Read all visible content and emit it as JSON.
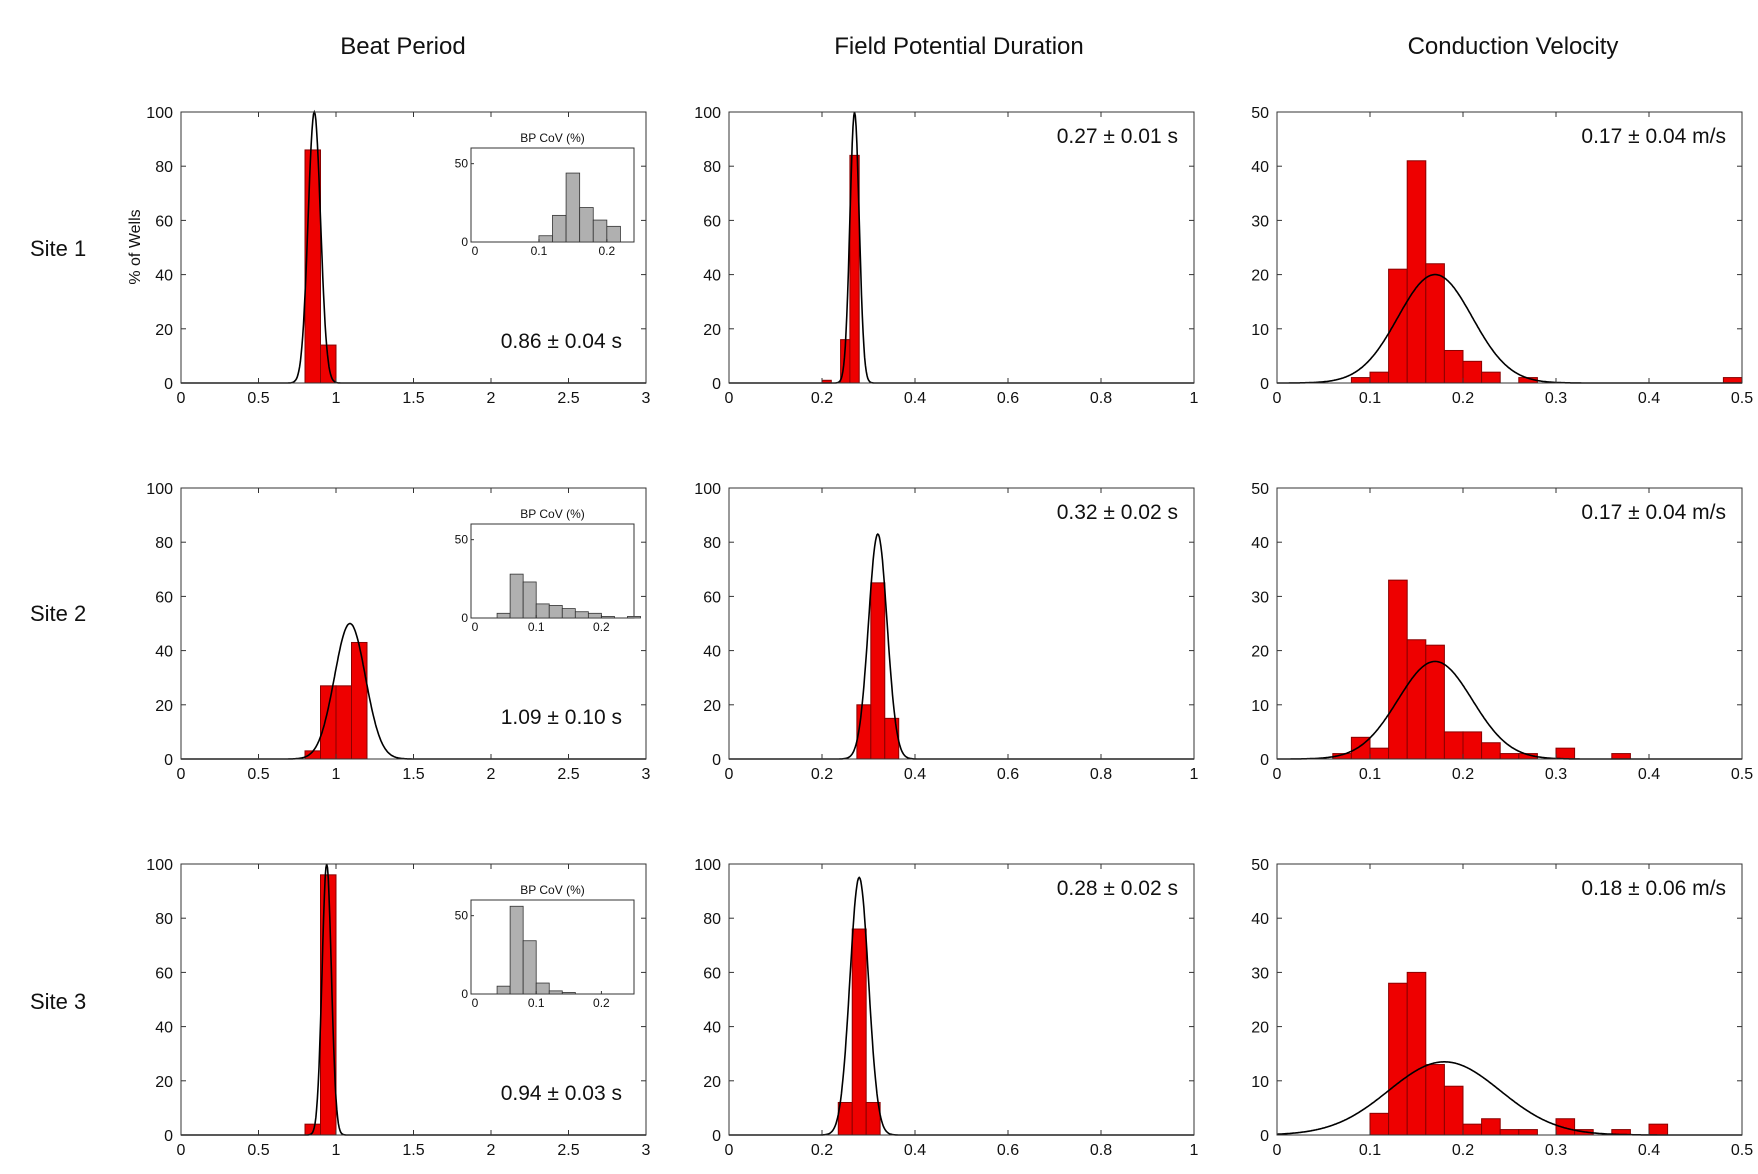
{
  "figure": {
    "column_titles": [
      "Beat Period",
      "Field Potential Duration",
      "Conduction Velocity"
    ],
    "row_labels": [
      "Site 1",
      "Site 2",
      "Site 3"
    ],
    "ylabel": "% of Wells"
  },
  "chart_data": [
    {
      "type": "bar",
      "title": "Beat Period",
      "row": "Site 1",
      "xlim": [
        0,
        3
      ],
      "xticks": [
        0,
        0.5,
        1,
        1.5,
        2,
        2.5,
        3
      ],
      "xtick_labels": [
        "0",
        "0.5",
        "1",
        "1.5",
        "2",
        "2.5",
        "3"
      ],
      "ylim": [
        0,
        100
      ],
      "yticks": [
        0,
        20,
        40,
        60,
        80,
        100
      ],
      "ylabel": "% of Wells",
      "bin_width": 0.1,
      "x": [
        0.85,
        0.95
      ],
      "values": [
        86,
        14
      ],
      "fit": {
        "mean": 0.86,
        "sd": 0.04,
        "peak": 100
      },
      "annotation": "0.86 ± 0.04 s",
      "inset": {
        "title": "BP CoV (%)",
        "xlim": [
          0,
          0.24
        ],
        "ylim": [
          0,
          60
        ],
        "xticks": [
          0.1,
          0.2
        ],
        "xtick_labels": [
          "0.1",
          "0.2"
        ],
        "yticks": [
          0,
          50
        ],
        "ytick_labels": [
          "0",
          "50"
        ],
        "origin_x_label": "0",
        "bin_width": 0.02,
        "x": [
          0.05,
          0.07,
          0.09,
          0.11,
          0.13,
          0.15,
          0.17,
          0.19,
          0.21
        ],
        "values": [
          0,
          0,
          0,
          4,
          17,
          44,
          22,
          14,
          10
        ]
      }
    },
    {
      "type": "bar",
      "title": "Field Potential Duration",
      "row": "Site 1",
      "xlim": [
        0,
        1
      ],
      "xticks": [
        0,
        0.2,
        0.4,
        0.6,
        0.8,
        1
      ],
      "xtick_labels": [
        "0",
        "0.2",
        "0.4",
        "0.6",
        "0.8",
        "1"
      ],
      "ylim": [
        0,
        100
      ],
      "yticks": [
        0,
        20,
        40,
        60,
        80,
        100
      ],
      "bin_width": 0.02,
      "x": [
        0.21,
        0.23,
        0.25,
        0.27,
        0.29
      ],
      "values": [
        1,
        0,
        16,
        84,
        0
      ],
      "fit": {
        "mean": 0.27,
        "sd": 0.01,
        "peak": 100
      },
      "annotation": "0.27 ± 0.01 s"
    },
    {
      "type": "bar",
      "title": "Conduction Velocity",
      "row": "Site 1",
      "xlim": [
        0,
        0.5
      ],
      "xticks": [
        0,
        0.1,
        0.2,
        0.3,
        0.4,
        0.5
      ],
      "xtick_labels": [
        "0",
        "0.1",
        "0.2",
        "0.3",
        "0.4",
        "0.5"
      ],
      "ylim": [
        0,
        50
      ],
      "yticks": [
        0,
        10,
        20,
        30,
        40,
        50
      ],
      "bin_width": 0.02,
      "x": [
        0.09,
        0.11,
        0.13,
        0.15,
        0.17,
        0.19,
        0.21,
        0.23,
        0.25,
        0.27,
        0.29,
        0.31,
        0.33,
        0.35,
        0.37,
        0.39,
        0.41,
        0.43,
        0.45,
        0.47,
        0.49
      ],
      "values": [
        1,
        2,
        21,
        41,
        22,
        6,
        4,
        2,
        0,
        1,
        0,
        0,
        0,
        0,
        0,
        0,
        0,
        0,
        0,
        0,
        1
      ],
      "fit": {
        "mean": 0.17,
        "sd": 0.04,
        "peak": 20
      },
      "annotation": "0.17 ± 0.04 m/s"
    },
    {
      "type": "bar",
      "title": "Beat Period",
      "row": "Site 2",
      "xlim": [
        0,
        3
      ],
      "xticks": [
        0,
        0.5,
        1,
        1.5,
        2,
        2.5,
        3
      ],
      "xtick_labels": [
        "0",
        "0.5",
        "1",
        "1.5",
        "2",
        "2.5",
        "3"
      ],
      "ylim": [
        0,
        100
      ],
      "yticks": [
        0,
        20,
        40,
        60,
        80,
        100
      ],
      "bin_width": 0.1,
      "x": [
        0.85,
        0.95,
        1.05,
        1.15
      ],
      "values": [
        3,
        27,
        27,
        43
      ],
      "fit": {
        "mean": 1.09,
        "sd": 0.1,
        "peak": 50
      },
      "annotation": "1.09 ± 0.10 s",
      "inset": {
        "title": "BP CoV (%)",
        "xlim": [
          0,
          0.25
        ],
        "ylim": [
          0,
          60
        ],
        "xticks": [
          0.1,
          0.2
        ],
        "xtick_labels": [
          "0.1",
          "0.2"
        ],
        "yticks": [
          0,
          50
        ],
        "ytick_labels": [
          "0",
          "50"
        ],
        "origin_x_label": "0",
        "bin_width": 0.02,
        "x": [
          0.03,
          0.05,
          0.07,
          0.09,
          0.11,
          0.13,
          0.15,
          0.17,
          0.19,
          0.21,
          0.23,
          0.25
        ],
        "values": [
          0,
          3,
          28,
          23,
          9,
          8,
          6,
          4,
          3,
          1,
          0,
          1
        ]
      }
    },
    {
      "type": "bar",
      "title": "Field Potential Duration",
      "row": "Site 2",
      "xlim": [
        0,
        1
      ],
      "xticks": [
        0,
        0.2,
        0.4,
        0.6,
        0.8,
        1
      ],
      "xtick_labels": [
        "0",
        "0.2",
        "0.4",
        "0.6",
        "0.8",
        "1"
      ],
      "ylim": [
        0,
        100
      ],
      "yticks": [
        0,
        20,
        40,
        60,
        80,
        100
      ],
      "bin_width": 0.03,
      "x": [
        0.29,
        0.32,
        0.35
      ],
      "values": [
        20,
        65,
        15
      ],
      "fit": {
        "mean": 0.32,
        "sd": 0.02,
        "peak": 83
      },
      "annotation": "0.32 ± 0.02 s"
    },
    {
      "type": "bar",
      "title": "Conduction Velocity",
      "row": "Site 2",
      "xlim": [
        0,
        0.5
      ],
      "xticks": [
        0,
        0.1,
        0.2,
        0.3,
        0.4,
        0.5
      ],
      "xtick_labels": [
        "0",
        "0.1",
        "0.2",
        "0.3",
        "0.4",
        "0.5"
      ],
      "ylim": [
        0,
        50
      ],
      "yticks": [
        0,
        10,
        20,
        30,
        40,
        50
      ],
      "bin_width": 0.02,
      "x": [
        0.07,
        0.09,
        0.11,
        0.13,
        0.15,
        0.17,
        0.19,
        0.21,
        0.23,
        0.25,
        0.27,
        0.29,
        0.31,
        0.33,
        0.35,
        0.37
      ],
      "values": [
        1,
        4,
        2,
        33,
        22,
        21,
        5,
        5,
        3,
        1,
        1,
        0,
        2,
        0,
        0,
        1
      ],
      "fit": {
        "mean": 0.17,
        "sd": 0.04,
        "peak": 18
      },
      "annotation": "0.17 ± 0.04 m/s"
    },
    {
      "type": "bar",
      "title": "Beat Period",
      "row": "Site 3",
      "xlim": [
        0,
        3
      ],
      "xticks": [
        0,
        0.5,
        1,
        1.5,
        2,
        2.5,
        3
      ],
      "xtick_labels": [
        "0",
        "0.5",
        "1",
        "1.5",
        "2",
        "2.5",
        "3"
      ],
      "ylim": [
        0,
        100
      ],
      "yticks": [
        0,
        20,
        40,
        60,
        80,
        100
      ],
      "bin_width": 0.1,
      "x": [
        0.85,
        0.95
      ],
      "values": [
        4,
        96
      ],
      "fit": {
        "mean": 0.94,
        "sd": 0.03,
        "peak": 100
      },
      "annotation": "0.94 ± 0.03 s",
      "inset": {
        "title": "BP CoV (%)",
        "xlim": [
          0,
          0.25
        ],
        "ylim": [
          0,
          60
        ],
        "xticks": [
          0.1,
          0.2
        ],
        "xtick_labels": [
          "0.1",
          "0.2"
        ],
        "yticks": [
          0,
          50
        ],
        "ytick_labels": [
          "0",
          "50"
        ],
        "origin_x_label": "0",
        "bin_width": 0.02,
        "x": [
          0.05,
          0.07,
          0.09,
          0.11,
          0.13,
          0.15,
          0.17,
          0.19,
          0.21
        ],
        "values": [
          5,
          56,
          34,
          7,
          2,
          1,
          0,
          0,
          0
        ]
      }
    },
    {
      "type": "bar",
      "title": "Field Potential Duration",
      "row": "Site 3",
      "xlim": [
        0,
        1
      ],
      "xticks": [
        0,
        0.2,
        0.4,
        0.6,
        0.8,
        1
      ],
      "xtick_labels": [
        "0",
        "0.2",
        "0.4",
        "0.6",
        "0.8",
        "1"
      ],
      "ylim": [
        0,
        100
      ],
      "yticks": [
        0,
        20,
        40,
        60,
        80,
        100
      ],
      "bin_width": 0.03,
      "x": [
        0.25,
        0.28,
        0.31
      ],
      "values": [
        12,
        76,
        12
      ],
      "fit": {
        "mean": 0.28,
        "sd": 0.02,
        "peak": 95
      },
      "annotation": "0.28 ± 0.02 s"
    },
    {
      "type": "bar",
      "title": "Conduction Velocity",
      "row": "Site 3",
      "xlim": [
        0,
        0.5
      ],
      "xticks": [
        0,
        0.1,
        0.2,
        0.3,
        0.4,
        0.5
      ],
      "xtick_labels": [
        "0",
        "0.1",
        "0.2",
        "0.3",
        "0.4",
        "0.5"
      ],
      "ylim": [
        0,
        50
      ],
      "yticks": [
        0,
        10,
        20,
        30,
        40,
        50
      ],
      "bin_width": 0.02,
      "x": [
        0.11,
        0.13,
        0.15,
        0.17,
        0.19,
        0.21,
        0.23,
        0.25,
        0.27,
        0.29,
        0.31,
        0.33,
        0.35,
        0.37,
        0.39,
        0.41
      ],
      "values": [
        4,
        28,
        30,
        13,
        9,
        2,
        3,
        1,
        1,
        0,
        3,
        1,
        0,
        1,
        0,
        2
      ],
      "fit": {
        "mean": 0.18,
        "sd": 0.06,
        "peak": 13.5
      },
      "annotation": "0.18 ± 0.06 m/s"
    }
  ],
  "colors": {
    "bar": "#ee0000",
    "bar_edge": "#8a0000",
    "inset_bar": "#b0b0b0",
    "inset_edge": "#333333",
    "fit_line": "#000000",
    "axis": "#333333"
  }
}
